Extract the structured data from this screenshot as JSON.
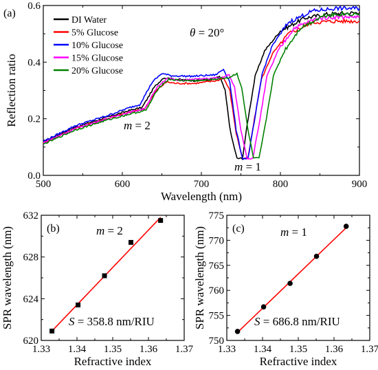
{
  "chart_data": [
    {
      "panel_label": "(a)",
      "type": "line",
      "xlabel": "Wavelength (nm)",
      "ylabel": "Reflection ratio",
      "xlim": [
        500,
        900
      ],
      "ylim": [
        0.0,
        0.6
      ],
      "xticks": [
        "500",
        "600",
        "700",
        "800",
        "900"
      ],
      "yticks": [
        "0.0",
        "0.2",
        "0.4",
        "0.6"
      ],
      "annotations": {
        "theta_symbol": "θ",
        "theta_value": " = 20°",
        "m2_symbol": "m",
        "m2_value": " = 2",
        "m1_symbol": "m",
        "m1_value": " = 1"
      },
      "legend_position": "top-left",
      "series": [
        {
          "name": "DI Water",
          "color": "#000000",
          "points": [
            [
              500,
              0.12
            ],
            [
              540,
              0.17
            ],
            [
              580,
              0.205
            ],
            [
              610,
              0.23
            ],
            [
              625,
              0.24
            ],
            [
              640,
              0.31
            ],
            [
              652,
              0.345
            ],
            [
              665,
              0.34
            ],
            [
              690,
              0.335
            ],
            [
              715,
              0.338
            ],
            [
              723,
              0.35
            ],
            [
              730,
              0.3
            ],
            [
              737,
              0.15
            ],
            [
              745,
              0.06
            ],
            [
              752,
              0.06
            ],
            [
              758,
              0.18
            ],
            [
              768,
              0.35
            ],
            [
              780,
              0.44
            ],
            [
              800,
              0.51
            ],
            [
              830,
              0.555
            ],
            [
              860,
              0.57
            ],
            [
              900,
              0.575
            ]
          ]
        },
        {
          "name": "5% Glucose",
          "color": "#ff0000",
          "points": [
            [
              500,
              0.115
            ],
            [
              540,
              0.165
            ],
            [
              580,
              0.2
            ],
            [
              612,
              0.225
            ],
            [
              628,
              0.235
            ],
            [
              643,
              0.3
            ],
            [
              656,
              0.33
            ],
            [
              668,
              0.325
            ],
            [
              692,
              0.325
            ],
            [
              720,
              0.335
            ],
            [
              728,
              0.345
            ],
            [
              736,
              0.3
            ],
            [
              744,
              0.15
            ],
            [
              752,
              0.06
            ],
            [
              759,
              0.06
            ],
            [
              766,
              0.18
            ],
            [
              776,
              0.34
            ],
            [
              790,
              0.43
            ],
            [
              810,
              0.5
            ],
            [
              840,
              0.54
            ],
            [
              870,
              0.545
            ],
            [
              900,
              0.545
            ]
          ]
        },
        {
          "name": "10% Glucose",
          "color": "#0000ff",
          "points": [
            [
              500,
              0.12
            ],
            [
              540,
              0.175
            ],
            [
              580,
              0.21
            ],
            [
              610,
              0.24
            ],
            [
              622,
              0.25
            ],
            [
              638,
              0.33
            ],
            [
              650,
              0.36
            ],
            [
              662,
              0.352
            ],
            [
              688,
              0.35
            ],
            [
              718,
              0.355
            ],
            [
              728,
              0.375
            ],
            [
              736,
              0.33
            ],
            [
              744,
              0.16
            ],
            [
              752,
              0.06
            ],
            [
              759,
              0.06
            ],
            [
              767,
              0.19
            ],
            [
              777,
              0.36
            ],
            [
              790,
              0.46
            ],
            [
              810,
              0.54
            ],
            [
              840,
              0.58
            ],
            [
              870,
              0.59
            ],
            [
              900,
              0.59
            ]
          ]
        },
        {
          "name": "15% Glucose",
          "color": "#ff00ff",
          "points": [
            [
              500,
              0.115
            ],
            [
              540,
              0.165
            ],
            [
              580,
              0.2
            ],
            [
              612,
              0.225
            ],
            [
              628,
              0.235
            ],
            [
              644,
              0.31
            ],
            [
              657,
              0.345
            ],
            [
              670,
              0.335
            ],
            [
              696,
              0.34
            ],
            [
              725,
              0.345
            ],
            [
              735,
              0.355
            ],
            [
              742,
              0.31
            ],
            [
              750,
              0.16
            ],
            [
              758,
              0.06
            ],
            [
              765,
              0.06
            ],
            [
              773,
              0.18
            ],
            [
              783,
              0.35
            ],
            [
              797,
              0.44
            ],
            [
              817,
              0.52
            ],
            [
              847,
              0.555
            ],
            [
              875,
              0.56
            ],
            [
              900,
              0.56
            ]
          ]
        },
        {
          "name": "20% Glucose",
          "color": "#008000",
          "points": [
            [
              500,
              0.11
            ],
            [
              540,
              0.16
            ],
            [
              580,
              0.195
            ],
            [
              614,
              0.22
            ],
            [
              630,
              0.23
            ],
            [
              646,
              0.31
            ],
            [
              659,
              0.34
            ],
            [
              672,
              0.335
            ],
            [
              700,
              0.335
            ],
            [
              735,
              0.345
            ],
            [
              745,
              0.36
            ],
            [
              751,
              0.31
            ],
            [
              759,
              0.16
            ],
            [
              766,
              0.06
            ],
            [
              773,
              0.06
            ],
            [
              781,
              0.18
            ],
            [
              791,
              0.35
            ],
            [
              805,
              0.44
            ],
            [
              825,
              0.52
            ],
            [
              855,
              0.565
            ],
            [
              880,
              0.57
            ],
            [
              900,
              0.57
            ]
          ]
        }
      ]
    },
    {
      "panel_label": "(b)",
      "type": "scatter",
      "xlabel": "Refractive index",
      "ylabel": "SPR wavelength (nm)",
      "xlim": [
        1.33,
        1.37
      ],
      "ylim": [
        620,
        632
      ],
      "xticks": [
        "1.33",
        "1.34",
        "1.35",
        "1.36",
        "1.37"
      ],
      "yticks": [
        "620",
        "624",
        "628",
        "632"
      ],
      "annotation_m_symbol": "m",
      "annotation_m_value": " = 2",
      "fit_symbol": "S",
      "fit_text": " = 358.8 nm/RIU",
      "fit_color": "#ff0000",
      "points": [
        [
          1.333,
          620.9
        ],
        [
          1.3403,
          623.4
        ],
        [
          1.3477,
          626.2
        ],
        [
          1.3551,
          629.4
        ],
        [
          1.3634,
          631.5
        ]
      ],
      "fit": [
        [
          1.333,
          620.9
        ],
        [
          1.3634,
          631.8
        ]
      ]
    },
    {
      "panel_label": "(c)",
      "type": "scatter",
      "xlabel": "Refractive index",
      "ylabel": "SPR wavelength (nm)",
      "xlim": [
        1.33,
        1.37
      ],
      "ylim": [
        750,
        775
      ],
      "xticks": [
        "1.33",
        "1.34",
        "1.35",
        "1.36",
        "1.37"
      ],
      "yticks": [
        "750",
        "755",
        "760",
        "765",
        "770",
        "775"
      ],
      "annotation_m_symbol": "m",
      "annotation_m_value": " = 1",
      "fit_symbol": "S",
      "fit_text": " = 686.8 nm/RIU",
      "fit_color": "#ff0000",
      "points": [
        [
          1.333,
          751.8
        ],
        [
          1.3403,
          756.7
        ],
        [
          1.3477,
          761.4
        ],
        [
          1.3551,
          766.8
        ],
        [
          1.3634,
          772.8
        ]
      ],
      "fit": [
        [
          1.333,
          751.6
        ],
        [
          1.3634,
          772.5
        ]
      ]
    }
  ]
}
